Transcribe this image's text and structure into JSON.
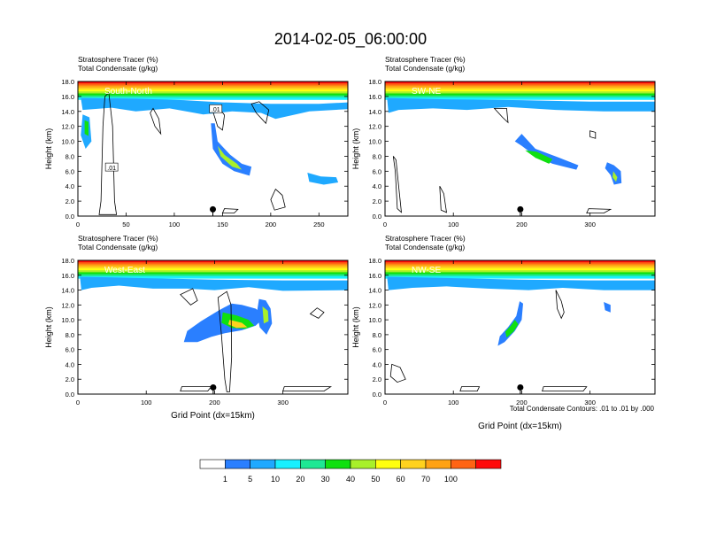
{
  "title": "2014-02-05_06:00:00",
  "footer_note": "Total Condensate Contours: .01 to .01 by .000",
  "colorbar": {
    "labels": [
      "1",
      "5",
      "10",
      "20",
      "30",
      "40",
      "50",
      "60",
      "70",
      "100"
    ],
    "colors": [
      "#ffffff",
      "#2a7fff",
      "#1fa9ff",
      "#19f0ff",
      "#1ee894",
      "#10e010",
      "#a8f02a",
      "#ffff10",
      "#ffd21e",
      "#ffa214",
      "#ff6414",
      "#ff0a0a"
    ]
  },
  "chart_data": [
    {
      "type": "heatmap",
      "panel": "South-North",
      "title_line1": "Stratosphere Tracer   (%)",
      "title_line2": "Total Condensate   (g/kg)",
      "ylabel": "Height (km)",
      "xlabel": "",
      "xlim": [
        0,
        280
      ],
      "ylim": [
        0,
        18
      ],
      "xticks": [
        "0",
        "50",
        "100",
        "150",
        "200",
        "250"
      ],
      "xtick_values": [
        0,
        50,
        100,
        150,
        200,
        250
      ],
      "yticks": [
        "0.0",
        "2.0",
        "4.0",
        "6.0",
        "8.0",
        "10.0",
        "12.0",
        "14.0",
        "16.0",
        "18.0"
      ],
      "marker_x": 140,
      "contour_labels": [
        ".01",
        ".01"
      ]
    },
    {
      "type": "heatmap",
      "panel": "SW-NE",
      "title_line1": "Stratosphere Tracer   (%)",
      "title_line2": "Total Condensate   (g/kg)",
      "ylabel": "Height (km)",
      "xlabel": "",
      "xlim": [
        0,
        395
      ],
      "ylim": [
        0,
        18
      ],
      "xticks": [
        "0",
        "100",
        "200",
        "300"
      ],
      "xtick_values": [
        0,
        100,
        200,
        300
      ],
      "yticks": [
        "0.0",
        "2.0",
        "4.0",
        "6.0",
        "8.0",
        "10.0",
        "12.0",
        "14.0",
        "16.0",
        "18.0"
      ],
      "marker_x": 198
    },
    {
      "type": "heatmap",
      "panel": "West-East",
      "title_line1": "Stratosphere Tracer   (%)",
      "title_line2": "Total Condensate   (g/kg)",
      "ylabel": "Height (km)",
      "xlabel": "Grid Point (dx=15km)",
      "xlim": [
        0,
        395
      ],
      "ylim": [
        0,
        18
      ],
      "xticks": [
        "0",
        "100",
        "200",
        "300"
      ],
      "xtick_values": [
        0,
        100,
        200,
        300
      ],
      "yticks": [
        "0.0",
        "2.0",
        "4.0",
        "6.0",
        "8.0",
        "10.0",
        "12.0",
        "14.0",
        "16.0",
        "18.0"
      ],
      "marker_x": 198
    },
    {
      "type": "heatmap",
      "panel": "NW-SE",
      "title_line1": "Stratosphere Tracer   (%)",
      "title_line2": "Total Condensate   (g/kg)",
      "ylabel": "Height (km)",
      "xlabel": "Grid Point (dx=15km)",
      "xlim": [
        0,
        395
      ],
      "ylim": [
        0,
        18
      ],
      "xticks": [
        "0",
        "100",
        "200",
        "300"
      ],
      "xtick_values": [
        0,
        100,
        200,
        300
      ],
      "yticks": [
        "0.0",
        "2.0",
        "4.0",
        "6.0",
        "8.0",
        "10.0",
        "12.0",
        "14.0",
        "16.0",
        "18.0"
      ],
      "marker_x": 198
    }
  ]
}
